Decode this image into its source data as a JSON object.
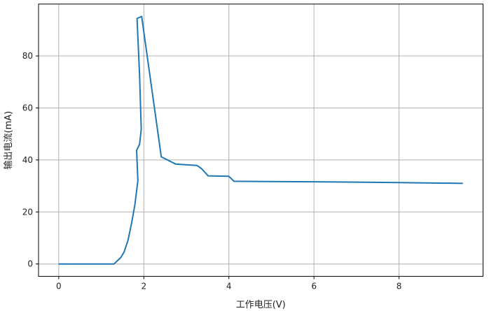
{
  "chart_data": {
    "type": "line",
    "title": "",
    "xlabel": "工作电压(V)",
    "ylabel": "输出电流(mA)",
    "xlim": [
      -0.475,
      9.975
    ],
    "ylim": [
      -4.76,
      99.96
    ],
    "xticks": [
      0,
      2,
      4,
      6,
      8
    ],
    "yticks": [
      0,
      20,
      40,
      60,
      80
    ],
    "xtick_labels": [
      "0",
      "2",
      "4",
      "6",
      "8"
    ],
    "ytick_labels": [
      "0",
      "20",
      "40",
      "60",
      "80"
    ],
    "grid": true,
    "line_color": "#1f77b4",
    "series": [
      {
        "x": [
          0,
          1.3,
          1.46,
          1.54,
          1.63,
          1.71,
          1.79,
          1.86,
          1.83,
          1.9,
          1.94,
          1.9,
          1.84,
          1.95,
          2.41,
          2.75,
          3.25,
          3.36,
          3.51,
          4.0,
          4.12,
          6.0,
          8.0,
          9.5
        ],
        "y": [
          0,
          0,
          2.5,
          4.7,
          9.2,
          15.5,
          22.7,
          32.0,
          43.7,
          46.0,
          51.8,
          72.8,
          94.4,
          95.2,
          41.2,
          38.4,
          37.9,
          36.6,
          33.9,
          33.7,
          31.8,
          31.6,
          31.3,
          31.0
        ]
      }
    ]
  }
}
